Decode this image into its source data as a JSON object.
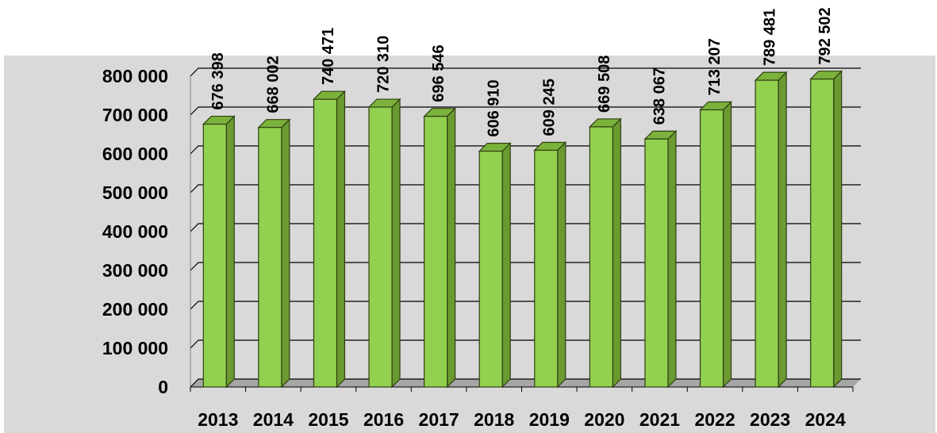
{
  "chart_data": {
    "type": "bar",
    "title": "",
    "xlabel": "",
    "ylabel": "",
    "categories": [
      "2013",
      "2014",
      "2015",
      "2016",
      "2017",
      "2018",
      "2019",
      "2020",
      "2021",
      "2022",
      "2023",
      "2024"
    ],
    "values": [
      676398,
      668002,
      740471,
      720310,
      696546,
      606910,
      609245,
      669508,
      638067,
      713207,
      789481,
      792502
    ],
    "value_labels": [
      "676 398",
      "668 002",
      "740 471",
      "720 310",
      "696 546",
      "606 910",
      "609 245",
      "669 508",
      "638 067",
      "713 207",
      "789 481",
      "792 502"
    ],
    "yticks": [
      "0",
      "100 000",
      "200 000",
      "300 000",
      "400 000",
      "500 000",
      "600 000",
      "700 000",
      "800 000"
    ],
    "ylim": [
      0,
      800000
    ],
    "grid": true,
    "bar_color": "#92D050",
    "bar_side_color": "#6A9A30",
    "bar_top_color": "#7BB23C",
    "plot_background": "#D9D9D9"
  }
}
